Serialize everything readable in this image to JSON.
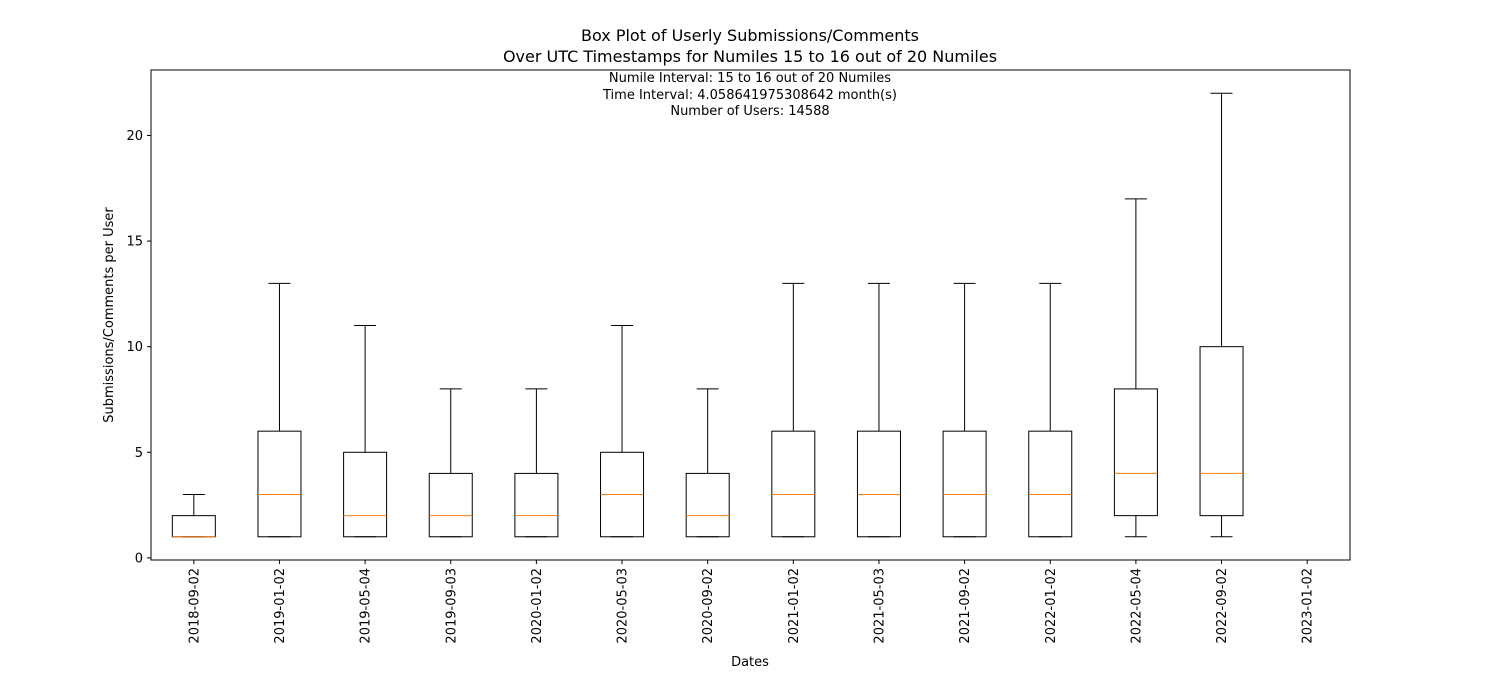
{
  "chart_data": {
    "type": "box",
    "title": "Box Plot of Userly Submissions/Comments",
    "subtitle": "Over UTC Timestamps for Numiles 15 to 16 out of 20 Numiles",
    "annotations": [
      "Numile Interval: 15 to 16 out of 20 Numiles",
      "Time Interval: 4.058641975308642 month(s)",
      "Number of Users: 14588"
    ],
    "xlabel": "Dates",
    "ylabel": "Submissions/Comments per User",
    "ylim": [
      -0.1,
      23.1
    ],
    "yticks": [
      0,
      5,
      10,
      15,
      20
    ],
    "categories": [
      "2018-09-02",
      "2019-01-02",
      "2019-05-04",
      "2019-09-03",
      "2020-01-02",
      "2020-05-03",
      "2020-09-02",
      "2021-01-02",
      "2021-05-03",
      "2021-09-02",
      "2022-01-02",
      "2022-05-04",
      "2022-09-02",
      "2023-01-02"
    ],
    "boxes": [
      {
        "whisker_low": 1,
        "q1": 1,
        "median": 1,
        "q3": 2,
        "whisker_high": 3
      },
      {
        "whisker_low": 1,
        "q1": 1,
        "median": 3,
        "q3": 6,
        "whisker_high": 13
      },
      {
        "whisker_low": 1,
        "q1": 1,
        "median": 2,
        "q3": 5,
        "whisker_high": 11
      },
      {
        "whisker_low": 1,
        "q1": 1,
        "median": 2,
        "q3": 4,
        "whisker_high": 8
      },
      {
        "whisker_low": 1,
        "q1": 1,
        "median": 2,
        "q3": 4,
        "whisker_high": 8
      },
      {
        "whisker_low": 1,
        "q1": 1,
        "median": 3,
        "q3": 5,
        "whisker_high": 11
      },
      {
        "whisker_low": 1,
        "q1": 1,
        "median": 2,
        "q3": 4,
        "whisker_high": 8
      },
      {
        "whisker_low": 1,
        "q1": 1,
        "median": 3,
        "q3": 6,
        "whisker_high": 13
      },
      {
        "whisker_low": 1,
        "q1": 1,
        "median": 3,
        "q3": 6,
        "whisker_high": 13
      },
      {
        "whisker_low": 1,
        "q1": 1,
        "median": 3,
        "q3": 6,
        "whisker_high": 13
      },
      {
        "whisker_low": 1,
        "q1": 1,
        "median": 3,
        "q3": 6,
        "whisker_high": 13
      },
      {
        "whisker_low": 1,
        "q1": 2,
        "median": 4,
        "q3": 8,
        "whisker_high": 17
      },
      {
        "whisker_low": 1,
        "q1": 2,
        "median": 4,
        "q3": 10,
        "whisker_high": 22
      },
      null
    ],
    "grid": false,
    "legend": "none",
    "colors": {
      "box": "#000000",
      "median": "#ff7f0e",
      "background": "#ffffff"
    }
  }
}
